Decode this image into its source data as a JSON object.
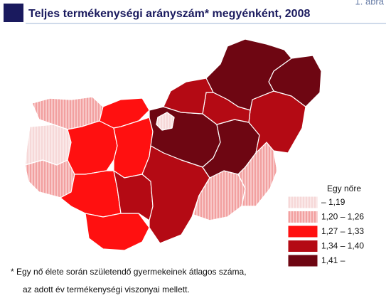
{
  "header": {
    "title": "Teljes termékenységi arányszám* megyénként, 2008",
    "figure_label": "1. ábra"
  },
  "legend": {
    "title": "Egy nőre",
    "items": [
      {
        "label": "– 1,19",
        "color": "#f6d8d8"
      },
      {
        "label": "1,20 – 1,26",
        "color": "#f2a0a0"
      },
      {
        "label": "1,27 – 1,33",
        "color": "#ff1010"
      },
      {
        "label": "1,34 – 1,40",
        "color": "#b40a14"
      },
      {
        "label": "1,41 –",
        "color": "#6e0612"
      }
    ]
  },
  "footnote": [
    "* Egy nő élete során születendő gyermekeinek átlagos száma,",
    "az adott év termékenységi viszonyai mellett."
  ]
}
